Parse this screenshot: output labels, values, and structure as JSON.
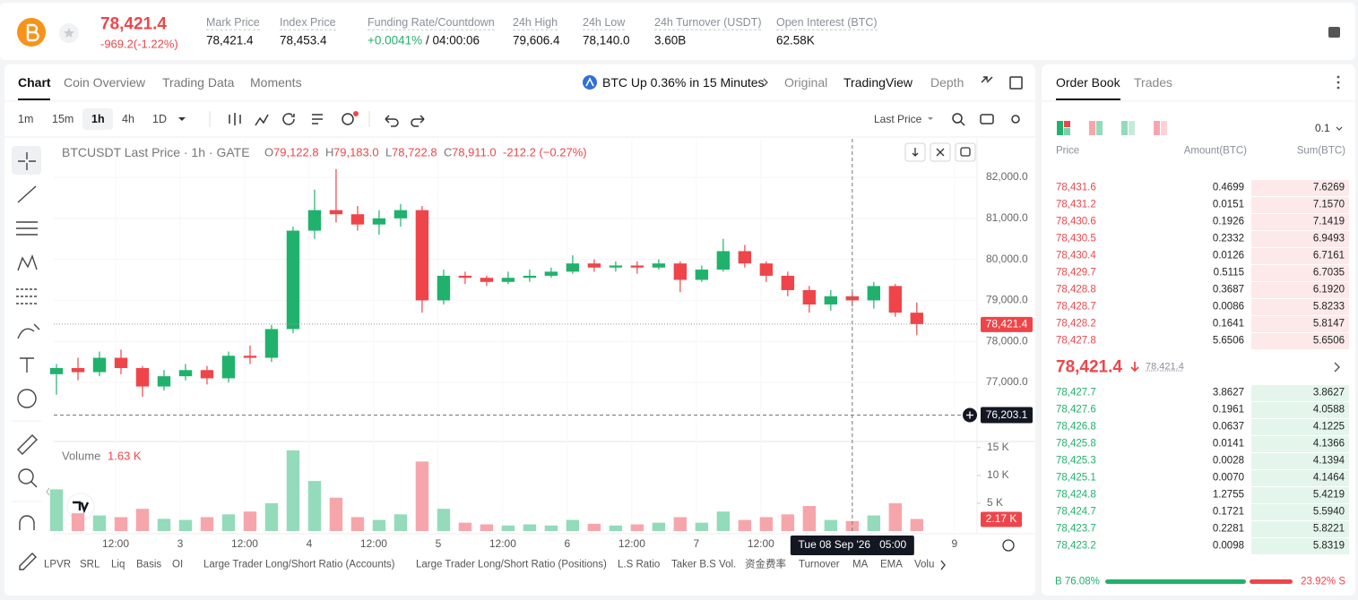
{
  "header": {
    "price": "78,421.4",
    "change": "-969.2(-1.22%)",
    "stats": [
      {
        "label": "Mark Price",
        "value": "78,421.4"
      },
      {
        "label": "Index Price",
        "value": "78,453.4"
      },
      {
        "label": "Funding Rate/Countdown",
        "value": "+0.0041%",
        "extra": "/ 04:00:06"
      },
      {
        "label": "24h High",
        "value": "79,606.4"
      },
      {
        "label": "24h Low",
        "value": "78,140.0"
      },
      {
        "label": "24h Turnover (USDT)",
        "value": "3.60B"
      },
      {
        "label": "Open Interest (BTC)",
        "value": "62.58K"
      }
    ]
  },
  "chart_tabs": [
    "Chart",
    "Coin Overview",
    "Trading Data",
    "Moments"
  ],
  "banner": "BTC Up 0.36% in 15 Minutes",
  "view_tabs": [
    "Original",
    "TradingView",
    "Depth"
  ],
  "intervals": [
    "1m",
    "15m",
    "1h",
    "4h",
    "1D"
  ],
  "price_type": "Last Price",
  "indicators": [
    "LPVR",
    "SRL",
    "Liq",
    "Basis",
    "OI",
    "Large Trader Long/Short Ratio (Accounts)",
    "Large Trader Long/Short Ratio (Positions)",
    "L.S Ratio",
    "Taker B.S Vol.",
    "资金费率",
    "Turnover",
    "MA",
    "EMA",
    "Volu"
  ],
  "chart_data": {
    "type": "candlestick",
    "title": "BTCUSDT Last Price · 1h · GATE",
    "ohlc_legend": [
      {
        "key": "O",
        "value": "79,122.8"
      },
      {
        "key": "H",
        "value": "79,183.0"
      },
      {
        "key": "L",
        "value": "78,722.8"
      },
      {
        "key": "C",
        "value": "78,911.0"
      }
    ],
    "legend_change": "-212.2 (−0.27%)",
    "x": [
      0,
      4,
      8,
      12,
      16,
      20,
      24,
      28,
      32,
      36,
      40,
      44,
      48,
      52,
      56,
      60,
      64,
      68,
      72,
      76,
      80,
      84,
      88,
      92,
      96,
      100,
      104,
      108,
      112,
      116,
      120,
      124,
      128,
      132,
      136,
      140,
      144,
      148,
      152,
      156,
      160
    ],
    "open": [
      77200,
      77350,
      77250,
      77600,
      77350,
      76900,
      77150,
      77300,
      77100,
      77650,
      77600,
      78300,
      80700,
      81200,
      81100,
      80850,
      81000,
      81200,
      79000,
      79600,
      79550,
      79450,
      79550,
      79600,
      79700,
      79900,
      79800,
      79850,
      79800,
      79900,
      79500,
      79750,
      80200,
      79900,
      79600,
      79250,
      78900,
      79100,
      79000,
      79350,
      78700
    ],
    "high": [
      77450,
      77600,
      77750,
      77800,
      77400,
      77300,
      77450,
      77400,
      77750,
      77900,
      78400,
      80800,
      81700,
      82200,
      81300,
      81200,
      81350,
      81300,
      79750,
      79700,
      79600,
      79700,
      79750,
      79800,
      80100,
      80000,
      79950,
      79950,
      80000,
      79950,
      79850,
      80500,
      80350,
      79950,
      79700,
      79350,
      79250,
      79200,
      79450,
      79400,
      78950
    ],
    "low": [
      76700,
      77050,
      77150,
      77200,
      76650,
      76800,
      77050,
      76950,
      77000,
      77450,
      77500,
      78200,
      80500,
      80900,
      80700,
      80600,
      80800,
      78700,
      78900,
      79400,
      79350,
      79400,
      79450,
      79550,
      79650,
      79700,
      79700,
      79650,
      79750,
      79200,
      79450,
      79700,
      79800,
      79450,
      79100,
      78700,
      78750,
      78850,
      78800,
      78600,
      78150
    ],
    "close": [
      77350,
      77250,
      77600,
      77350,
      76900,
      77150,
      77300,
      77100,
      77650,
      77600,
      78300,
      80700,
      81200,
      81100,
      80850,
      81000,
      81200,
      79000,
      79600,
      79550,
      79450,
      79550,
      79600,
      79700,
      79900,
      79800,
      79850,
      79800,
      79900,
      79500,
      79750,
      80200,
      79900,
      79600,
      79250,
      78900,
      79100,
      79000,
      79350,
      78700,
      78421.4
    ],
    "volume": [
      7.5,
      3.2,
      2.8,
      2.5,
      4.0,
      2.2,
      2.0,
      2.5,
      3.0,
      3.5,
      5.0,
      14.5,
      9.0,
      6.0,
      2.5,
      2.0,
      3.0,
      12.5,
      4.0,
      1.5,
      1.2,
      1.0,
      1.2,
      1.0,
      2.0,
      1.3,
      1.0,
      1.2,
      1.5,
      2.5,
      1.5,
      3.5,
      2.0,
      2.5,
      3.0,
      4.5,
      2.0,
      1.8,
      2.8,
      5.0,
      2.17
    ],
    "up_color": "#20b26c",
    "down_color": "#ef454a",
    "volume_up_color": "#93dbba",
    "volume_down_color": "#f6a6ab",
    "xlim": [
      -0.5,
      171.2
    ],
    "ylim": [
      75581,
      82939
    ],
    "yticks": [
      {
        "value": 77000,
        "label": "77,000.0"
      },
      {
        "value": 78000,
        "label": "78,000.0"
      },
      {
        "value": 79000,
        "label": "79,000.0"
      },
      {
        "value": 80000,
        "label": "80,000.0"
      },
      {
        "value": 81000,
        "label": "81,000.0"
      },
      {
        "value": 82000,
        "label": "82,000.0"
      }
    ],
    "xticks": [
      {
        "value": 11,
        "label": "12:00"
      },
      {
        "value": 23,
        "label": "3"
      },
      {
        "value": 35,
        "label": "12:00"
      },
      {
        "value": 47,
        "label": "4"
      },
      {
        "value": 59,
        "label": "12:00"
      },
      {
        "value": 71,
        "label": "5"
      },
      {
        "value": 83,
        "label": "12:00"
      },
      {
        "value": 95,
        "label": "6"
      },
      {
        "value": 107,
        "label": "12:00"
      },
      {
        "value": 119,
        "label": "7"
      },
      {
        "value": 131,
        "label": "12:00"
      },
      {
        "value": 167,
        "label": "9"
      }
    ],
    "volume_title": "Volume",
    "volume_value": "1.63 K",
    "volume_ylim": [
      0,
      16.1
    ],
    "volume_ticks": [
      {
        "value": 5,
        "label": "5 K"
      },
      {
        "value": 10,
        "label": "10 K"
      },
      {
        "value": 15,
        "label": "15 K"
      }
    ],
    "volume_last": {
      "value": 2.17,
      "label": "2.17 K"
    },
    "last_price": {
      "value": 78421.4,
      "label": "78,421.4"
    },
    "crosshair": {
      "x": 148,
      "y": 76203.1,
      "x_label": "Tue 08 Sep '26   05:00",
      "y_label": "76,203.1"
    },
    "grid": true
  },
  "order_book": {
    "tabs": [
      "Order Book",
      "Trades"
    ],
    "precision": "0.1",
    "headers": [
      "Price",
      "Amount(BTC)",
      "Sum(BTC)"
    ],
    "asks": [
      [
        "78,431.6",
        "0.4699",
        "7.6269"
      ],
      [
        "78,431.2",
        "0.0151",
        "7.1570"
      ],
      [
        "78,430.6",
        "0.1926",
        "7.1419"
      ],
      [
        "78,430.5",
        "0.2332",
        "6.9493"
      ],
      [
        "78,430.4",
        "0.0126",
        "6.7161"
      ],
      [
        "78,429.7",
        "0.5115",
        "6.7035"
      ],
      [
        "78,428.8",
        "0.3687",
        "6.1920"
      ],
      [
        "78,428.7",
        "0.0086",
        "5.8233"
      ],
      [
        "78,428.2",
        "0.1641",
        "5.8147"
      ],
      [
        "78,427.8",
        "5.6506",
        "5.6506"
      ]
    ],
    "mid_price": "78,421.4",
    "mark_price": "78,421.4",
    "bids": [
      [
        "78,427.7",
        "3.8627",
        "3.8627"
      ],
      [
        "78,427.6",
        "0.1961",
        "4.0588"
      ],
      [
        "78,426.8",
        "0.0637",
        "4.1225"
      ],
      [
        "78,425.8",
        "0.0141",
        "4.1366"
      ],
      [
        "78,425.3",
        "0.0028",
        "4.1394"
      ],
      [
        "78,425.1",
        "0.0070",
        "4.1464"
      ],
      [
        "78,424.8",
        "1.2755",
        "5.4219"
      ],
      [
        "78,424.7",
        "0.1721",
        "5.5940"
      ],
      [
        "78,423.7",
        "0.2281",
        "5.8221"
      ],
      [
        "78,423.2",
        "0.0098",
        "5.8319"
      ]
    ],
    "ratio": {
      "buy": 76.08,
      "buy_label": "B 76.08%",
      "sell": 23.92,
      "sell_label": "23.92% S"
    }
  }
}
